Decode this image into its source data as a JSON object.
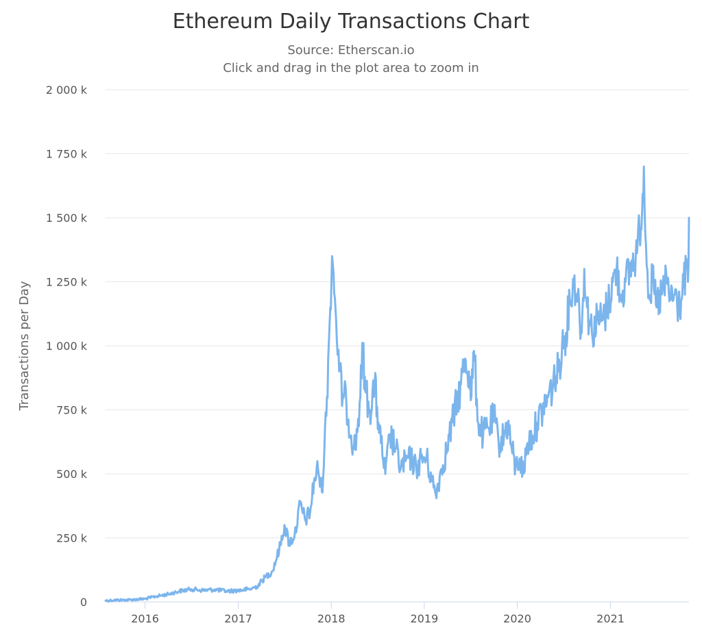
{
  "chart_data": {
    "type": "line",
    "title": "Ethereum Daily Transactions Chart",
    "subtitle": [
      "Source: Etherscan.io",
      "Click and drag in the plot area to zoom in"
    ],
    "xlabel": "",
    "ylabel": "Transactions per Day",
    "xlim": [
      "2015-07-30",
      "2021-11-05"
    ],
    "ylim": [
      0,
      2000000
    ],
    "x_ticks": [
      {
        "value": "2016-01-01",
        "label": "2016"
      },
      {
        "value": "2017-01-01",
        "label": "2017"
      },
      {
        "value": "2018-01-01",
        "label": "2018"
      },
      {
        "value": "2019-01-01",
        "label": "2019"
      },
      {
        "value": "2020-01-01",
        "label": "2020"
      },
      {
        "value": "2021-01-01",
        "label": "2021"
      }
    ],
    "y_ticks": [
      {
        "value": 0,
        "label": "0"
      },
      {
        "value": 250000,
        "label": "250 k"
      },
      {
        "value": 500000,
        "label": "500 k"
      },
      {
        "value": 750000,
        "label": "750 k"
      },
      {
        "value": 1000000,
        "label": "1 000 k"
      },
      {
        "value": 1250000,
        "label": "1 250 k"
      },
      {
        "value": 1500000,
        "label": "1 500 k"
      },
      {
        "value": 1750000,
        "label": "1 750 k"
      },
      {
        "value": 2000000,
        "label": "2 000 k"
      }
    ],
    "grid": {
      "horizontal": true,
      "vertical": false
    },
    "legend": "none",
    "colors": {
      "line": "#7cb5ec",
      "grid": "#e6e6e6",
      "axis": "#ccd6eb"
    },
    "series": [
      {
        "x": [
          "2015-07-30",
          "2015-09-01",
          "2015-11-01",
          "2016-01-01",
          "2016-02-15",
          "2016-04-01",
          "2016-05-15",
          "2016-07-01",
          "2016-08-15",
          "2016-10-01",
          "2016-11-15",
          "2017-01-01",
          "2017-02-15",
          "2017-03-15",
          "2017-04-15",
          "2017-05-15",
          "2017-06-15",
          "2017-07-01",
          "2017-07-20",
          "2017-08-10",
          "2017-09-01",
          "2017-09-20",
          "2017-10-10",
          "2017-10-25",
          "2017-11-10",
          "2017-11-25",
          "2017-12-05",
          "2017-12-15",
          "2017-12-22",
          "2017-12-28",
          "2018-01-04",
          "2018-01-10",
          "2018-01-20",
          "2018-02-01",
          "2018-02-15",
          "2018-03-01",
          "2018-03-20",
          "2018-04-05",
          "2018-04-25",
          "2018-05-05",
          "2018-05-15",
          "2018-06-01",
          "2018-06-20",
          "2018-07-05",
          "2018-07-15",
          "2018-08-01",
          "2018-08-20",
          "2018-09-10",
          "2018-10-01",
          "2018-10-20",
          "2018-11-10",
          "2018-12-01",
          "2018-12-20",
          "2019-01-10",
          "2019-02-01",
          "2019-02-15",
          "2019-03-10",
          "2019-04-01",
          "2019-04-20",
          "2019-05-10",
          "2019-05-25",
          "2019-06-10",
          "2019-06-25",
          "2019-07-05",
          "2019-07-15",
          "2019-08-01",
          "2019-08-20",
          "2019-09-10",
          "2019-10-01",
          "2019-10-20",
          "2019-11-10",
          "2019-11-25",
          "2019-12-10",
          "2019-12-25",
          "2020-01-10",
          "2020-01-25",
          "2020-02-10",
          "2020-03-01",
          "2020-03-20",
          "2020-04-10",
          "2020-05-01",
          "2020-05-20",
          "2020-06-10",
          "2020-06-25",
          "2020-07-10",
          "2020-07-25",
          "2020-08-10",
          "2020-08-25",
          "2020-09-10",
          "2020-09-20",
          "2020-10-01",
          "2020-10-20",
          "2020-11-10",
          "2020-12-01",
          "2020-12-20",
          "2021-01-10",
          "2021-01-25",
          "2021-02-10",
          "2021-03-01",
          "2021-03-20",
          "2021-04-10",
          "2021-04-25",
          "2021-05-05",
          "2021-05-12",
          "2021-05-20",
          "2021-06-01",
          "2021-06-15",
          "2021-07-01",
          "2021-07-20",
          "2021-08-10",
          "2021-08-25",
          "2021-09-10",
          "2021-09-25",
          "2021-10-10",
          "2021-10-25",
          "2021-11-01",
          "2021-11-05"
        ],
        "values": [
          5000,
          7000,
          8000,
          12000,
          22000,
          30000,
          42000,
          50000,
          45000,
          48000,
          42000,
          45000,
          50000,
          60000,
          95000,
          120000,
          220000,
          300000,
          230000,
          260000,
          380000,
          320000,
          350000,
          470000,
          520000,
          430000,
          600000,
          800000,
          1000000,
          1150000,
          1350000,
          1280000,
          1100000,
          900000,
          800000,
          780000,
          650000,
          600000,
          800000,
          1000000,
          820000,
          750000,
          850000,
          700000,
          620000,
          500000,
          650000,
          600000,
          520000,
          550000,
          560000,
          520000,
          560000,
          560000,
          470000,
          420000,
          520000,
          600000,
          700000,
          780000,
          850000,
          950000,
          900000,
          800000,
          980000,
          700000,
          650000,
          680000,
          720000,
          620000,
          650000,
          700000,
          600000,
          520000,
          560000,
          500000,
          620000,
          650000,
          700000,
          750000,
          800000,
          850000,
          900000,
          1000000,
          1050000,
          1180000,
          1250000,
          1200000,
          1050000,
          1300000,
          1150000,
          1050000,
          1100000,
          1100000,
          1150000,
          1250000,
          1300000,
          1200000,
          1250000,
          1300000,
          1350000,
          1450000,
          1520000,
          1700000,
          1400000,
          1200000,
          1250000,
          1150000,
          1200000,
          1250000,
          1180000,
          1200000,
          1150000,
          1200000,
          1300000,
          1250000,
          1500000
        ]
      }
    ]
  }
}
